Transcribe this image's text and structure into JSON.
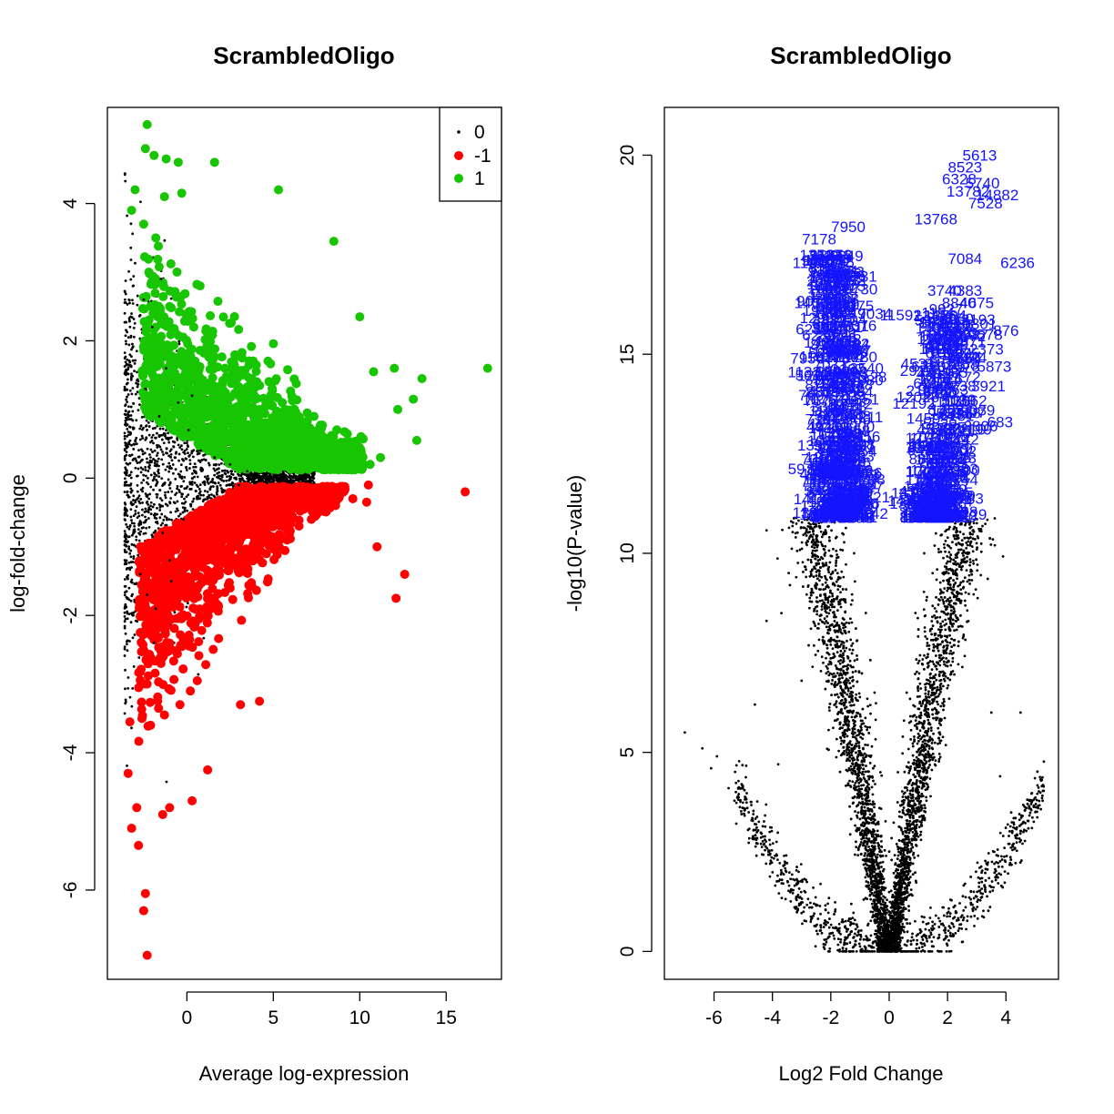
{
  "colors": {
    "black": "#000000",
    "red": "#ff0000",
    "green": "#17c600",
    "blue": "#1414ff"
  },
  "chart_data": [
    {
      "type": "scatter",
      "title": "ScrambledOligo",
      "xlabel": "Average log-expression",
      "ylabel": "log-fold-change",
      "xlim": [
        -4.6,
        18.2
      ],
      "ylim": [
        -7.3,
        5.4
      ],
      "xticks": [
        0,
        5,
        10,
        15
      ],
      "yticks": [
        -6,
        -4,
        -2,
        0,
        2,
        4
      ],
      "grid": false,
      "legend": {
        "position": "top-right",
        "entries": [
          {
            "label": "0",
            "color": "#000000",
            "marker": "small-dot"
          },
          {
            "label": "-1",
            "color": "#ff0000",
            "marker": "large-dot"
          },
          {
            "label": "1",
            "color": "#17c600",
            "marker": "large-dot"
          }
        ]
      },
      "series": [
        {
          "name": "0",
          "color": "#000000",
          "points": [
            [
              -3.6,
              -0.6
            ],
            [
              -3.3,
              -1.1
            ],
            [
              -2.9,
              0.5
            ],
            [
              -2.7,
              -1.4
            ],
            [
              -2.4,
              1.3
            ],
            [
              -2.2,
              -0.3
            ],
            [
              -2.0,
              2.2
            ],
            [
              -1.8,
              -1.9
            ],
            [
              -1.6,
              0.9
            ],
            [
              -1.4,
              -0.8
            ],
            [
              -1.2,
              1.6
            ],
            [
              -1.0,
              -1.2
            ],
            [
              -0.7,
              0.3
            ],
            [
              -0.5,
              1.1
            ],
            [
              -0.2,
              -0.6
            ],
            [
              0.1,
              0.7
            ],
            [
              0.4,
              -0.3
            ],
            [
              0.8,
              0.4
            ],
            [
              1.2,
              -0.2
            ],
            [
              1.6,
              0.3
            ],
            [
              2.0,
              -0.15
            ],
            [
              2.5,
              0.2
            ],
            [
              3.0,
              -0.1
            ],
            [
              3.5,
              0.1
            ],
            [
              4.0,
              0.0
            ],
            [
              4.5,
              0.05
            ],
            [
              5.0,
              -0.05
            ],
            [
              5.5,
              0.02
            ],
            [
              6.0,
              -0.02
            ],
            [
              6.5,
              0.0
            ],
            [
              -3.1,
              -2.0
            ],
            [
              -2.5,
              2.6
            ],
            [
              -1.9,
              -2.4
            ],
            [
              -1.5,
              2.9
            ],
            [
              -2.3,
              -1.7
            ],
            [
              -0.9,
              -1.5
            ],
            [
              0.3,
              1.2
            ],
            [
              -3.4,
              0.2
            ]
          ]
        },
        {
          "name": "-1",
          "color": "#ff0000",
          "points": [
            [
              -2.3,
              -6.95
            ],
            [
              -2.5,
              -6.3
            ],
            [
              -2.4,
              -6.05
            ],
            [
              -2.8,
              -5.35
            ],
            [
              -3.2,
              -5.1
            ],
            [
              -2.9,
              -4.8
            ],
            [
              -3.4,
              -4.3
            ],
            [
              -1.4,
              -4.9
            ],
            [
              -1.0,
              -4.8
            ],
            [
              0.3,
              -4.7
            ],
            [
              1.2,
              -4.25
            ],
            [
              -3.3,
              -3.55
            ],
            [
              -2.6,
              -3.5
            ],
            [
              -2.1,
              -3.6
            ],
            [
              -1.3,
              -3.45
            ],
            [
              -0.4,
              -3.3
            ],
            [
              0.2,
              -3.1
            ],
            [
              0.6,
              -2.95
            ],
            [
              3.1,
              -3.3
            ],
            [
              4.2,
              -3.25
            ],
            [
              -2.3,
              -3.0
            ],
            [
              -1.5,
              -2.7
            ],
            [
              -0.9,
              -2.5
            ],
            [
              -0.2,
              -2.35
            ],
            [
              0.5,
              -2.1
            ],
            [
              1.4,
              -1.9
            ],
            [
              2.5,
              -1.6
            ],
            [
              3.5,
              -1.35
            ],
            [
              4.6,
              -1.1
            ],
            [
              5.8,
              -0.9
            ],
            [
              7.2,
              -0.6
            ],
            [
              8.6,
              -0.4
            ],
            [
              9.6,
              -0.3
            ],
            [
              11.0,
              -1.0
            ],
            [
              12.1,
              -1.75
            ],
            [
              12.6,
              -1.4
            ],
            [
              16.1,
              -0.2
            ],
            [
              10.4,
              -0.35
            ],
            [
              10.5,
              -0.1
            ]
          ]
        },
        {
          "name": "1",
          "color": "#17c600",
          "points": [
            [
              -2.3,
              5.15
            ],
            [
              -2.4,
              4.8
            ],
            [
              -1.9,
              4.7
            ],
            [
              -1.2,
              4.65
            ],
            [
              -0.5,
              4.6
            ],
            [
              1.6,
              4.6
            ],
            [
              -3.0,
              4.2
            ],
            [
              -1.3,
              4.1
            ],
            [
              -0.3,
              4.15
            ],
            [
              5.3,
              4.2
            ],
            [
              -3.2,
              3.9
            ],
            [
              -2.5,
              3.7
            ],
            [
              -1.8,
              3.5
            ],
            [
              -2.2,
              3.0
            ],
            [
              -1.0,
              2.5
            ],
            [
              0.4,
              2.2
            ],
            [
              1.2,
              1.9
            ],
            [
              2.2,
              1.6
            ],
            [
              3.2,
              1.3
            ],
            [
              4.2,
              1.0
            ],
            [
              5.2,
              0.8
            ],
            [
              6.2,
              0.6
            ],
            [
              7.2,
              0.4
            ],
            [
              8.5,
              3.45
            ],
            [
              10.0,
              2.35
            ],
            [
              10.8,
              1.55
            ],
            [
              12.0,
              1.6
            ],
            [
              13.1,
              1.15
            ],
            [
              13.6,
              1.45
            ],
            [
              13.3,
              0.55
            ],
            [
              12.2,
              1.0
            ],
            [
              17.4,
              1.6
            ],
            [
              10.6,
              0.2
            ],
            [
              11.2,
              0.3
            ],
            [
              9.6,
              0.25
            ]
          ]
        }
      ]
    },
    {
      "type": "scatter",
      "title": "ScrambledOligo",
      "xlabel": "Log2 Fold Change",
      "ylabel": "-log10(P-value)",
      "xlim": [
        -7.7,
        5.8
      ],
      "ylim": [
        -0.7,
        21.2
      ],
      "xticks": [
        -6,
        -4,
        -2,
        0,
        2,
        4
      ],
      "yticks": [
        0,
        5,
        10,
        15,
        20
      ],
      "grid": false,
      "series": [
        {
          "name": "",
          "color": "#000000",
          "points": [
            [
              -7.0,
              5.5
            ],
            [
              -6.4,
              5.1
            ],
            [
              -6.1,
              4.6
            ],
            [
              -5.5,
              4.1
            ],
            [
              -5.0,
              3.6
            ],
            [
              -4.6,
              3.2
            ],
            [
              -4.1,
              2.8
            ],
            [
              -3.6,
              2.4
            ],
            [
              -3.1,
              2.0
            ],
            [
              -2.6,
              1.6
            ],
            [
              -2.1,
              1.2
            ],
            [
              -1.6,
              0.8
            ],
            [
              -1.1,
              0.4
            ],
            [
              -0.6,
              0.1
            ],
            [
              0.0,
              0.0
            ],
            [
              0.6,
              0.15
            ],
            [
              1.1,
              0.5
            ],
            [
              1.6,
              0.9
            ],
            [
              2.1,
              1.3
            ],
            [
              2.6,
              1.7
            ],
            [
              3.1,
              2.1
            ],
            [
              3.6,
              2.5
            ],
            [
              4.1,
              2.9
            ],
            [
              4.6,
              3.0
            ],
            [
              5.1,
              3.6
            ],
            [
              -4.6,
              6.2
            ],
            [
              -3.0,
              6.8
            ],
            [
              -2.3,
              7.4
            ],
            [
              -3.4,
              9.2
            ],
            [
              -4.2,
              8.3
            ],
            [
              -1.6,
              10.5
            ],
            [
              -1.2,
              10.0
            ],
            [
              -0.8,
              8.5
            ],
            [
              -0.5,
              6.5
            ],
            [
              -0.3,
              4.5
            ],
            [
              0.3,
              4.5
            ],
            [
              0.6,
              6.5
            ],
            [
              0.9,
              8.5
            ],
            [
              1.2,
              10.0
            ],
            [
              1.6,
              10.5
            ],
            [
              2.2,
              7.5
            ],
            [
              3.5,
              6.0
            ],
            [
              4.5,
              6.0
            ],
            [
              3.8,
              4.4
            ],
            [
              2.5,
              10.2
            ],
            [
              -3.8,
              4.7
            ],
            [
              -5.9,
              4.9
            ]
          ]
        },
        {
          "name": "",
          "color": "#1414ff",
          "labels": [
            {
              "text": "5613",
              "x": 3.1,
              "y": 20.0
            },
            {
              "text": "8523",
              "x": 2.6,
              "y": 19.7
            },
            {
              "text": "6328",
              "x": 2.4,
              "y": 19.4
            },
            {
              "text": "5740",
              "x": 3.2,
              "y": 19.3
            },
            {
              "text": "13782",
              "x": 2.7,
              "y": 19.1
            },
            {
              "text": "14882",
              "x": 3.7,
              "y": 19.0
            },
            {
              "text": "7528",
              "x": 3.3,
              "y": 18.8
            },
            {
              "text": "13768",
              "x": 1.6,
              "y": 18.4
            },
            {
              "text": "7950",
              "x": -1.4,
              "y": 18.2
            },
            {
              "text": "7178",
              "x": -2.4,
              "y": 17.9
            },
            {
              "text": "11916",
              "x": -2.0,
              "y": 17.5
            },
            {
              "text": "7084",
              "x": 2.6,
              "y": 17.4
            },
            {
              "text": "6236",
              "x": 4.4,
              "y": 17.3
            },
            {
              "text": "11949",
              "x": -2.6,
              "y": 17.3
            },
            {
              "text": "3740",
              "x": 1.9,
              "y": 16.6
            },
            {
              "text": "4383",
              "x": 2.6,
              "y": 16.6
            },
            {
              "text": "4675",
              "x": 3.0,
              "y": 16.3
            },
            {
              "text": "7950",
              "x": -2.8,
              "y": 14.9
            },
            {
              "text": "5465",
              "x": 2.0,
              "y": 15.1
            },
            {
              "text": "5873",
              "x": 3.6,
              "y": 14.7
            },
            {
              "text": "3921",
              "x": 3.4,
              "y": 14.2
            },
            {
              "text": "683",
              "x": 3.8,
              "y": 13.3
            },
            {
              "text": "9578",
              "x": 3.3,
              "y": 15.5
            },
            {
              "text": "876",
              "x": 4.0,
              "y": 15.6
            },
            {
              "text": "748",
              "x": -2.6,
              "y": 11.8
            }
          ]
        }
      ]
    }
  ]
}
